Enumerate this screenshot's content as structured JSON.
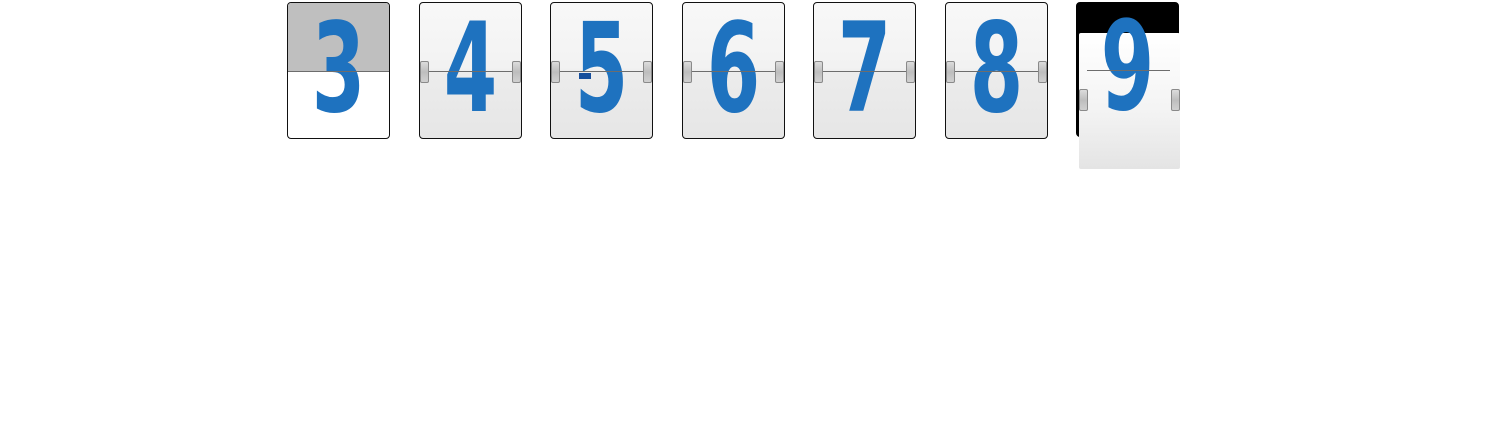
{
  "flip_counter": {
    "digits": [
      "3",
      "4",
      "5",
      "6",
      "7",
      "8",
      "9"
    ],
    "digit_color": "#1e72bf"
  }
}
